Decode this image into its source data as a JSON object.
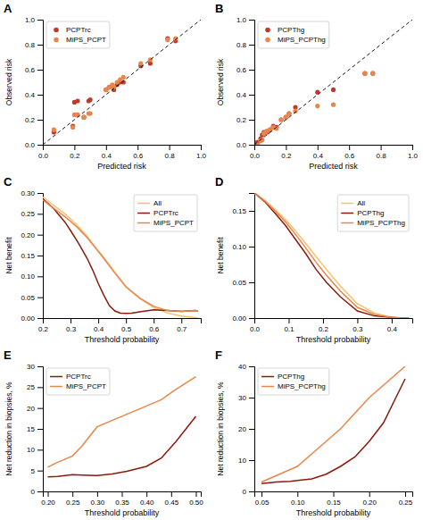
{
  "chart_data": [
    {
      "type": "scatter",
      "title": "A",
      "xlabel": "Predicted risk",
      "ylabel": "Observed risk",
      "legend": "upper-left",
      "grid": false,
      "xlim": [
        0,
        1
      ],
      "ylim": [
        0,
        1
      ],
      "xticks": [
        {
          "value": 0,
          "label": "0.0"
        },
        0.2,
        0.4,
        0.6,
        0.8,
        {
          "value": 1,
          "label": "1.0"
        }
      ],
      "yticks": [
        {
          "value": 0,
          "label": "0.0"
        },
        0.2,
        0.4,
        0.6,
        0.8,
        {
          "value": 1,
          "label": "1.0"
        }
      ],
      "series": [
        {
          "name": "PCPTrc",
          "color": "#c0392b",
          "marker": "circle",
          "x": [
            0.07,
            0.19,
            0.2,
            0.22,
            0.26,
            0.29,
            0.3,
            0.4,
            0.42,
            0.44,
            0.45,
            0.47,
            0.49,
            0.51,
            0.62,
            0.68,
            0.79,
            0.84
          ],
          "values": [
            0.1,
            0.15,
            0.34,
            0.35,
            0.22,
            0.35,
            0.36,
            0.44,
            0.46,
            0.47,
            0.44,
            0.48,
            0.5,
            0.5,
            0.63,
            0.65,
            0.85,
            0.83
          ]
        },
        {
          "name": "MiPS_PCPT",
          "color": "#e8864a",
          "marker": "circle",
          "x": [
            0.07,
            0.19,
            0.2,
            0.22,
            0.26,
            0.29,
            0.3,
            0.4,
            0.42,
            0.44,
            0.45,
            0.47,
            0.49,
            0.51,
            0.62,
            0.68,
            0.79,
            0.84
          ],
          "values": [
            0.12,
            0.14,
            0.24,
            0.24,
            0.22,
            0.25,
            0.25,
            0.44,
            0.46,
            0.48,
            0.46,
            0.5,
            0.52,
            0.54,
            0.65,
            0.68,
            0.84,
            0.85
          ]
        },
        {
          "type": "line",
          "line_style": "dashed",
          "color": "#000000",
          "x": [
            0,
            1
          ],
          "values": [
            0,
            1
          ]
        }
      ]
    },
    {
      "type": "scatter",
      "title": "B",
      "xlabel": "Predicted risk",
      "ylabel": "Observed risk",
      "legend": "upper-left",
      "grid": false,
      "xlim": [
        0,
        1
      ],
      "ylim": [
        0,
        1
      ],
      "xticks": [
        {
          "value": 0,
          "label": "0.0"
        },
        0.2,
        0.4,
        0.6,
        0.8,
        {
          "value": 1,
          "label": "1.0"
        }
      ],
      "yticks": [
        {
          "value": 0,
          "label": "0.0"
        },
        0.2,
        0.4,
        0.6,
        0.8,
        {
          "value": 1,
          "label": "1.0"
        }
      ],
      "series": [
        {
          "name": "PCPThg",
          "color": "#c0392b",
          "marker": "circle",
          "x": [
            0.02,
            0.04,
            0.05,
            0.06,
            0.07,
            0.08,
            0.1,
            0.12,
            0.14,
            0.17,
            0.2,
            0.22,
            0.26,
            0.4,
            0.5,
            0.7,
            0.75
          ],
          "values": [
            0.02,
            0.05,
            0.08,
            0.1,
            0.1,
            0.1,
            0.12,
            0.15,
            0.14,
            0.2,
            0.22,
            0.25,
            0.3,
            0.42,
            0.44,
            0.57,
            0.57
          ]
        },
        {
          "name": "MiPS_PCPThg",
          "color": "#e8864a",
          "marker": "circle",
          "x": [
            0.02,
            0.04,
            0.05,
            0.06,
            0.07,
            0.08,
            0.1,
            0.12,
            0.14,
            0.17,
            0.2,
            0.22,
            0.26,
            0.4,
            0.5,
            0.7,
            0.75
          ],
          "values": [
            0.0,
            0.03,
            0.04,
            0.09,
            0.1,
            0.11,
            0.12,
            0.14,
            0.13,
            0.2,
            0.22,
            0.25,
            0.27,
            0.31,
            0.32,
            0.57,
            0.57
          ]
        },
        {
          "type": "line",
          "line_style": "dashed",
          "color": "#000000",
          "x": [
            0,
            1
          ],
          "values": [
            0,
            1
          ]
        }
      ]
    },
    {
      "type": "line",
      "title": "C",
      "xlabel": "Threshold probability",
      "ylabel": "Net benefit",
      "legend": "upper-right",
      "grid": false,
      "xlim": [
        0.2,
        0.77
      ],
      "ylim": [
        0.0,
        0.3
      ],
      "xticks": [
        0.2,
        0.3,
        0.4,
        0.5,
        0.6,
        0.7
      ],
      "yticks": [
        {
          "value": 0,
          "label": "0.00"
        },
        0.05,
        {
          "value": 0.1,
          "label": "0.10"
        },
        0.15,
        {
          "value": 0.2,
          "label": "0.20"
        },
        0.25,
        {
          "value": 0.3,
          "label": "0.30"
        }
      ],
      "series": [
        {
          "name": "All",
          "color": "#f5c16c",
          "x": [
            0.2,
            0.24,
            0.28,
            0.3,
            0.33,
            0.36,
            0.39,
            0.42,
            0.46,
            0.5,
            0.55,
            0.6,
            0.65,
            0.7,
            0.75,
            0.76
          ],
          "values": [
            0.29,
            0.27,
            0.25,
            0.238,
            0.218,
            0.196,
            0.17,
            0.145,
            0.11,
            0.075,
            0.047,
            0.025,
            0.012,
            0.005,
            0.001,
            0.0
          ]
        },
        {
          "name": "PCPTrc",
          "color": "#8b1a0a",
          "x": [
            0.2,
            0.24,
            0.28,
            0.3,
            0.33,
            0.36,
            0.38,
            0.4,
            0.42,
            0.44,
            0.46,
            0.48,
            0.5,
            0.52,
            0.55,
            0.6,
            0.65,
            0.7,
            0.75,
            0.76
          ],
          "values": [
            0.286,
            0.262,
            0.23,
            0.21,
            0.178,
            0.143,
            0.115,
            0.083,
            0.055,
            0.03,
            0.017,
            0.012,
            0.011,
            0.012,
            0.015,
            0.02,
            0.018,
            0.016,
            0.018,
            0.017
          ]
        },
        {
          "name": "MiPS_PCPT",
          "color": "#e8864a",
          "x": [
            0.2,
            0.24,
            0.28,
            0.3,
            0.33,
            0.36,
            0.39,
            0.42,
            0.46,
            0.5,
            0.55,
            0.6,
            0.65,
            0.7,
            0.75,
            0.76
          ],
          "values": [
            0.283,
            0.263,
            0.243,
            0.232,
            0.214,
            0.193,
            0.168,
            0.143,
            0.108,
            0.075,
            0.048,
            0.028,
            0.018,
            0.016,
            0.018,
            0.017
          ]
        }
      ]
    },
    {
      "type": "line",
      "title": "D",
      "xlabel": "Threshold probability",
      "ylabel": "Net benefit",
      "legend": "upper-right",
      "grid": false,
      "xlim": [
        0.0,
        0.46
      ],
      "ylim": [
        0.0,
        0.175
      ],
      "xticks": [
        {
          "value": 0,
          "label": "0.0"
        },
        0.1,
        0.2,
        0.3,
        0.4
      ],
      "yticks": [
        {
          "value": 0,
          "label": "0.00"
        },
        0.05,
        {
          "value": 0.1,
          "label": "0.10"
        },
        0.15
      ],
      "series": [
        {
          "name": "All",
          "color": "#f5c16c",
          "x": [
            0.0,
            0.03,
            0.06,
            0.09,
            0.12,
            0.15,
            0.18,
            0.21,
            0.25,
            0.3,
            0.35,
            0.4,
            0.43,
            0.45
          ],
          "values": [
            0.175,
            0.165,
            0.152,
            0.138,
            0.122,
            0.104,
            0.086,
            0.068,
            0.045,
            0.02,
            0.007,
            0.001,
            0.0,
            0.0
          ]
        },
        {
          "name": "PCPThg",
          "color": "#8b1a0a",
          "x": [
            0.0,
            0.03,
            0.06,
            0.09,
            0.12,
            0.15,
            0.18,
            0.21,
            0.25,
            0.3,
            0.35,
            0.4,
            0.43,
            0.45
          ],
          "values": [
            0.175,
            0.163,
            0.147,
            0.13,
            0.11,
            0.09,
            0.068,
            0.05,
            0.03,
            0.01,
            0.003,
            0.001,
            0.0,
            0.0
          ]
        },
        {
          "name": "MiPS_PCPThg",
          "color": "#e8864a",
          "x": [
            0.0,
            0.03,
            0.06,
            0.09,
            0.12,
            0.15,
            0.18,
            0.21,
            0.25,
            0.3,
            0.35,
            0.4,
            0.43,
            0.45
          ],
          "values": [
            0.175,
            0.164,
            0.15,
            0.135,
            0.117,
            0.098,
            0.078,
            0.06,
            0.038,
            0.015,
            0.005,
            0.001,
            0.0,
            0.0
          ]
        }
      ]
    },
    {
      "type": "line",
      "title": "E",
      "xlabel": "Threshold probability",
      "ylabel": "Net reduction in biopsies, %",
      "legend": "upper-left",
      "grid": false,
      "xlim": [
        0.19,
        0.51
      ],
      "ylim": [
        0,
        30
      ],
      "xticks": [
        {
          "value": 0.2,
          "label": "0.20"
        },
        0.25,
        {
          "value": 0.3,
          "label": "0.30"
        },
        0.35,
        {
          "value": 0.4,
          "label": "0.40"
        },
        0.45,
        {
          "value": 0.5,
          "label": "0.50"
        }
      ],
      "yticks": [
        0,
        5,
        10,
        15,
        20,
        25,
        30
      ],
      "series": [
        {
          "name": "PCPTrc",
          "color": "#8b1a0a",
          "x": [
            0.2,
            0.22,
            0.25,
            0.27,
            0.3,
            0.33,
            0.36,
            0.4,
            0.43,
            0.46,
            0.5
          ],
          "values": [
            3.5,
            3.6,
            4.0,
            3.9,
            3.8,
            4.2,
            4.8,
            6.0,
            8.0,
            12.0,
            18.0
          ]
        },
        {
          "name": "MiPS_PCPT",
          "color": "#e8864a",
          "x": [
            0.2,
            0.22,
            0.25,
            0.27,
            0.3,
            0.33,
            0.36,
            0.4,
            0.43,
            0.46,
            0.5
          ],
          "values": [
            5.8,
            7.0,
            8.5,
            11.0,
            15.5,
            17.0,
            18.5,
            20.5,
            22.0,
            24.5,
            27.5
          ]
        }
      ]
    },
    {
      "type": "line",
      "title": "F",
      "xlabel": "Threshold probability",
      "ylabel": "Net reduction in biopsies, %",
      "legend": "upper-left",
      "grid": false,
      "xlim": [
        0.04,
        0.26
      ],
      "ylim": [
        0,
        40
      ],
      "xticks": [
        0.05,
        {
          "value": 0.1,
          "label": "0.10"
        },
        0.15,
        {
          "value": 0.2,
          "label": "0.20"
        },
        0.25
      ],
      "yticks": [
        0,
        10,
        20,
        30,
        40
      ],
      "series": [
        {
          "name": "PCPThg",
          "color": "#8b1a0a",
          "x": [
            0.05,
            0.07,
            0.09,
            0.1,
            0.12,
            0.14,
            0.16,
            0.18,
            0.2,
            0.22,
            0.25
          ],
          "values": [
            2.5,
            3.0,
            3.2,
            3.5,
            4.0,
            5.5,
            8.0,
            11.0,
            16.0,
            22.0,
            36.0
          ]
        },
        {
          "name": "MiPS_PCPThg",
          "color": "#e8864a",
          "x": [
            0.05,
            0.07,
            0.09,
            0.1,
            0.12,
            0.14,
            0.16,
            0.18,
            0.2,
            0.22,
            0.25
          ],
          "values": [
            3.0,
            5.0,
            7.0,
            8.0,
            12.0,
            16.0,
            20.0,
            25.0,
            30.0,
            34.0,
            40.0
          ]
        }
      ]
    }
  ]
}
